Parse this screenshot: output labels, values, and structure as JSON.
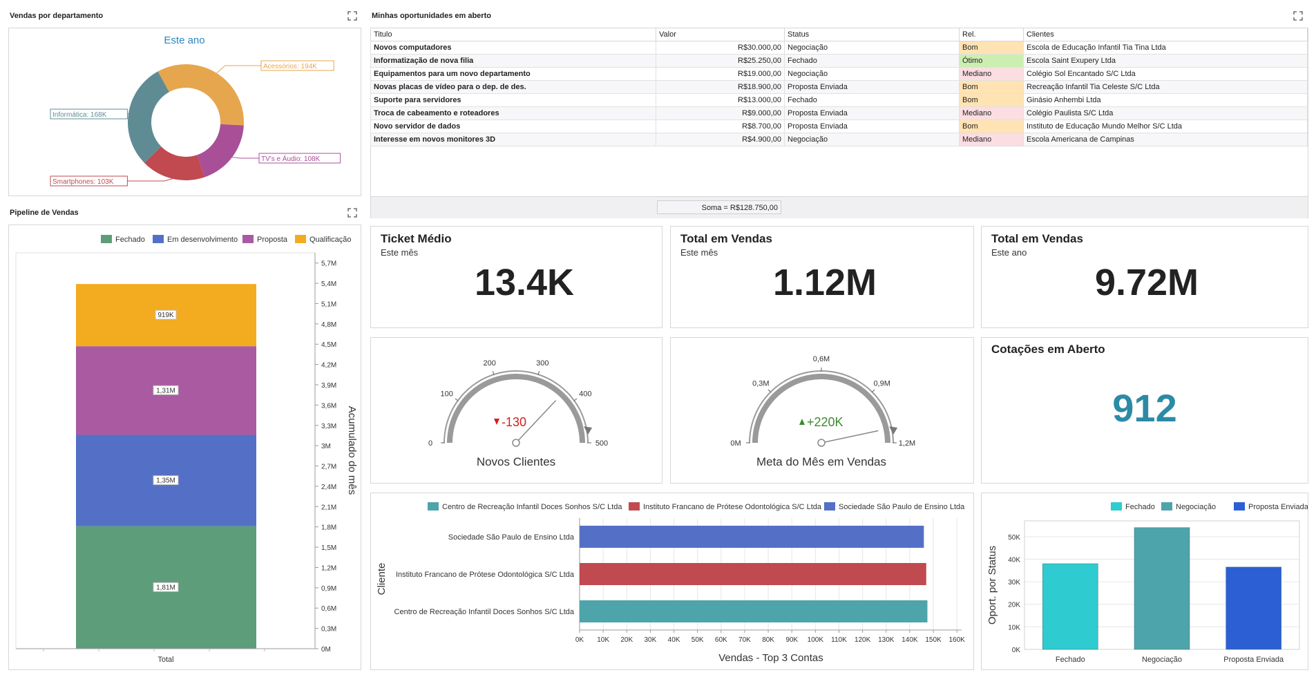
{
  "vendas_departamento": {
    "title": "Vendas por departamento",
    "subtitle": "Este ano",
    "slices": [
      {
        "label": "Acessórios: 194K",
        "value": 194,
        "color": "#e6a64d"
      },
      {
        "label": "TV's e Áudio: 108K",
        "value": 108,
        "color": "#a84f98"
      },
      {
        "label": "Smartphones: 103K",
        "value": 103,
        "color": "#c04a4f"
      },
      {
        "label": "Informática: 168K",
        "value": 168,
        "color": "#5f8c94"
      }
    ]
  },
  "pipeline": {
    "title": "Pipeline de Vendas",
    "legend": [
      "Fechado",
      "Em desenvolvimento",
      "Proposta",
      "Qualificação"
    ],
    "colors": [
      "#5e9d7a",
      "#5470c6",
      "#a95aa1",
      "#f3ab1f"
    ],
    "xlabel": "Total",
    "ylabel": "Acumulado do mês",
    "yticks": [
      "0M",
      "0,3M",
      "0,6M",
      "0,9M",
      "1,2M",
      "1,5M",
      "1,8M",
      "2,1M",
      "2,4M",
      "2,7M",
      "3M",
      "3,3M",
      "3,6M",
      "3,9M",
      "4,2M",
      "4,5M",
      "4,8M",
      "5,1M",
      "5,4M",
      "5,7M"
    ],
    "segment_labels": [
      "1,81M",
      "1,35M",
      "1,31M",
      "919K"
    ]
  },
  "oportunidades": {
    "title": "Minhas oportunidades em aberto",
    "columns": [
      "Titulo",
      "Valor",
      "Status",
      "Rel.",
      "Clientes"
    ],
    "rows": [
      [
        "Novos computadores",
        "R$30.000,00",
        "Negociação",
        "Bom",
        "Escola de Educação Infantil Tia Tina Ltda"
      ],
      [
        "Informatização de nova filia",
        "R$25.250,00",
        "Fechado",
        "Ótimo",
        "Escola Saint Exupery Ltda"
      ],
      [
        "Equipamentos para um novo departamento",
        "R$19.000,00",
        "Negociação",
        "Mediano",
        "Colégio Sol Encantado S/C Ltda"
      ],
      [
        "Novas placas de vídeo para o dep. de des.",
        "R$18.900,00",
        "Proposta Enviada",
        "Bom",
        "Recreação Infantil Tia Celeste S/C Ltda"
      ],
      [
        "Suporte para servidores",
        "R$13.000,00",
        "Fechado",
        "Bom",
        "Ginásio Anhembi Ltda"
      ],
      [
        "Troca de cabeamento e roteadores",
        "R$9.000,00",
        "Proposta Enviada",
        "Mediano",
        "Colégio Paulista S/C Ltda"
      ],
      [
        "Novo servidor de dados",
        "R$8.700,00",
        "Proposta Enviada",
        "Bom",
        "Instituto de Educação Mundo Melhor S/C Ltda"
      ],
      [
        "Interesse em novos monitores 3D",
        "R$4.900,00",
        "Negociação",
        "Mediano",
        "Escola Americana de Campinas"
      ]
    ],
    "rel_colors": {
      "Bom": "#ffe3b3",
      "Ótimo": "#cdeeb1",
      "Mediano": "#fbdde2"
    },
    "sum": "Soma = R$128.750,00"
  },
  "kpis": [
    {
      "title": "Ticket Médio",
      "sub": "Este mês",
      "value": "13.4K"
    },
    {
      "title": "Total em Vendas",
      "sub": "Este mês",
      "value": "1.12M"
    },
    {
      "title": "Total em Vendas",
      "sub": "Este ano",
      "value": "9.72M"
    }
  ],
  "gauge_clientes": {
    "title": "Novos Clientes",
    "delta": "-130",
    "delta_color": "#d11f1f",
    "ticks": [
      "0",
      "100",
      "200",
      "300",
      "400",
      "500"
    ],
    "min": 0,
    "max": 500,
    "needle": 370
  },
  "gauge_meta": {
    "title": "Meta do Mês em Vendas",
    "delta": "+220K",
    "delta_color": "#3a8a2f",
    "ticks": [
      "0M",
      "0,3M",
      "0,6M",
      "0,9M",
      "1,2M"
    ],
    "min": 0,
    "max": 1.2,
    "needle": 1.12
  },
  "cotacoes": {
    "title": "Cotações em Aberto",
    "value": "912",
    "color": "#2b8ba6"
  },
  "top_contas": {
    "legend": [
      "Centro de Recreação Infantil Doces Sonhos S/C Ltda",
      "Instituto Francano de Prótese Odontológica S/C Ltda",
      "Sociedade São Paulo de Ensino Ltda"
    ],
    "categories": [
      "Sociedade São Paulo de Ensino Ltda",
      "Instituto Francano de Prótese Odontológica S/C Ltda",
      "Centro de Recreação Infantil Doces Sonhos S/C Ltda"
    ],
    "values": [
      146,
      147,
      147.5
    ],
    "colors": [
      "#5470c6",
      "#c04a4f",
      "#4ea4ab"
    ],
    "legend_colors": [
      "#4ea4ab",
      "#c04a4f",
      "#5470c6"
    ],
    "xticks": [
      "0K",
      "10K",
      "20K",
      "30K",
      "40K",
      "50K",
      "60K",
      "70K",
      "80K",
      "90K",
      "100K",
      "110K",
      "120K",
      "130K",
      "140K",
      "150K",
      "160K"
    ],
    "xlabel": "Vendas - Top 3 Contas",
    "ylabel": "Cliente"
  },
  "oport_status": {
    "legend": [
      "Fechado",
      "Negociação",
      "Proposta Enviada"
    ],
    "categories": [
      "Fechado",
      "Negociação",
      "Proposta Enviada"
    ],
    "values": [
      38,
      54,
      36.5
    ],
    "colors": [
      "#2ecbd0",
      "#4ea4ab",
      "#2c5fd3"
    ],
    "yticks": [
      "0K",
      "10K",
      "20K",
      "30K",
      "40K",
      "50K"
    ],
    "ylabel": "Oport. por Status"
  }
}
